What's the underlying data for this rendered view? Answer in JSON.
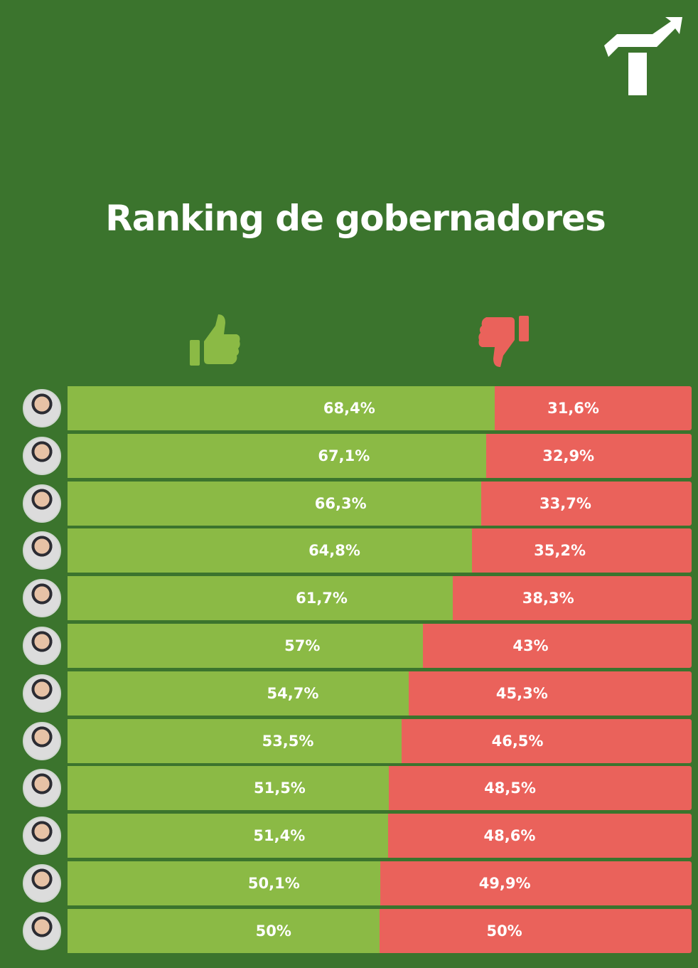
{
  "chart_data": {
    "type": "bar",
    "stacked": true,
    "orientation": "horizontal",
    "title": "Ranking de gobernadores",
    "series": [
      {
        "name": "approve",
        "icon": "thumbs-up-icon",
        "color": "#8bba45",
        "values": [
          68.4,
          67.1,
          66.3,
          64.8,
          61.7,
          57,
          54.7,
          53.5,
          51.5,
          51.4,
          50.1,
          50
        ],
        "labels": [
          "68,4%",
          "67,1%",
          "66,3%",
          "64,8%",
          "61,7%",
          "57%",
          "54,7%",
          "53,5%",
          "51,5%",
          "51,4%",
          "50,1%",
          "50%"
        ]
      },
      {
        "name": "disapprove",
        "icon": "thumbs-down-icon",
        "color": "#ea625b",
        "values": [
          31.6,
          32.9,
          33.7,
          35.2,
          38.3,
          43,
          45.3,
          46.5,
          48.5,
          48.6,
          49.9,
          50
        ],
        "labels": [
          "31,6%",
          "32,9%",
          "33,7%",
          "35,2%",
          "38,3%",
          "43%",
          "45,3%",
          "46,5%",
          "48,5%",
          "48,6%",
          "49,9%",
          "50%"
        ]
      }
    ],
    "xlim": [
      0,
      100
    ]
  },
  "colors": {
    "background": "#3b742d"
  }
}
